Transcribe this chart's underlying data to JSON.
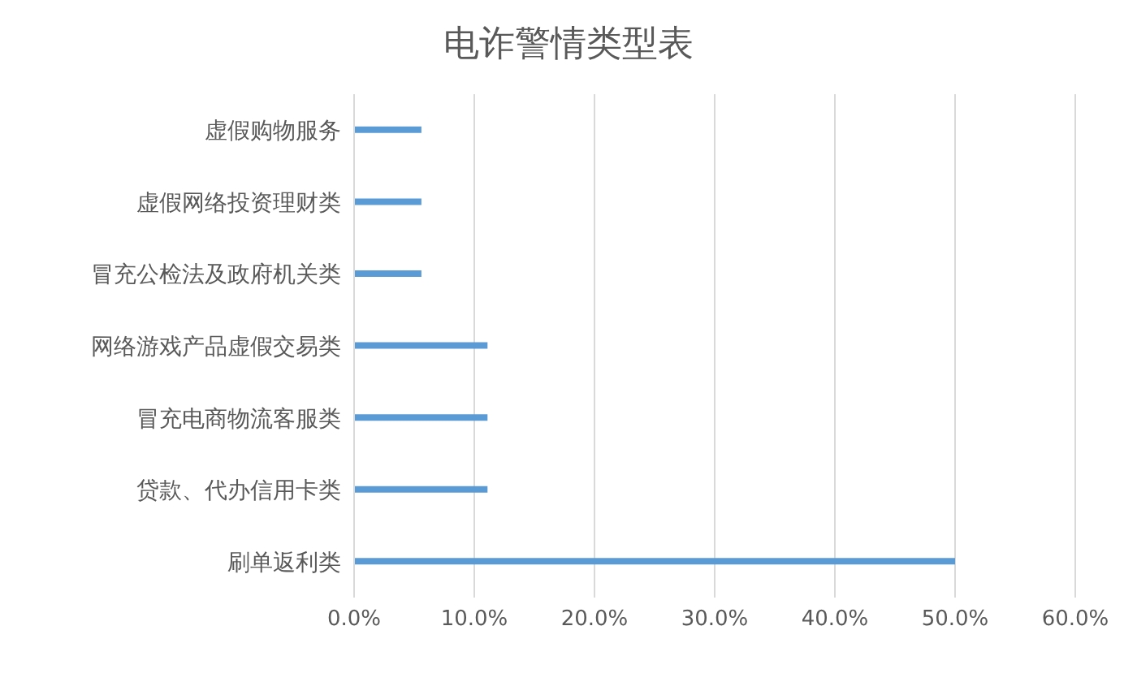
{
  "chart_data": {
    "type": "bar",
    "orientation": "horizontal",
    "title": "电诈警情类型表",
    "categories": [
      "虚假购物服务",
      "虚假网络投资理财类",
      "冒充公检法及政府机关类",
      "网络游戏产品虚假交易类",
      "冒充电商物流客服类",
      "贷款、代办信用卡类",
      "刷单返利类"
    ],
    "values": [
      5.6,
      5.6,
      5.6,
      11.1,
      11.1,
      11.1,
      50
    ],
    "color": "#5b9bd5",
    "xlim": [
      0,
      60
    ],
    "xticks": [
      {
        "value": 0,
        "label": "0.0%"
      },
      {
        "value": 10,
        "label": "10.0%"
      },
      {
        "value": 20,
        "label": "20.0%"
      },
      {
        "value": 30,
        "label": "30.0%"
      },
      {
        "value": 40,
        "label": "40.0%"
      },
      {
        "value": 50,
        "label": "50.0%"
      },
      {
        "value": 60,
        "label": "60.0%"
      }
    ],
    "grid": "x"
  }
}
